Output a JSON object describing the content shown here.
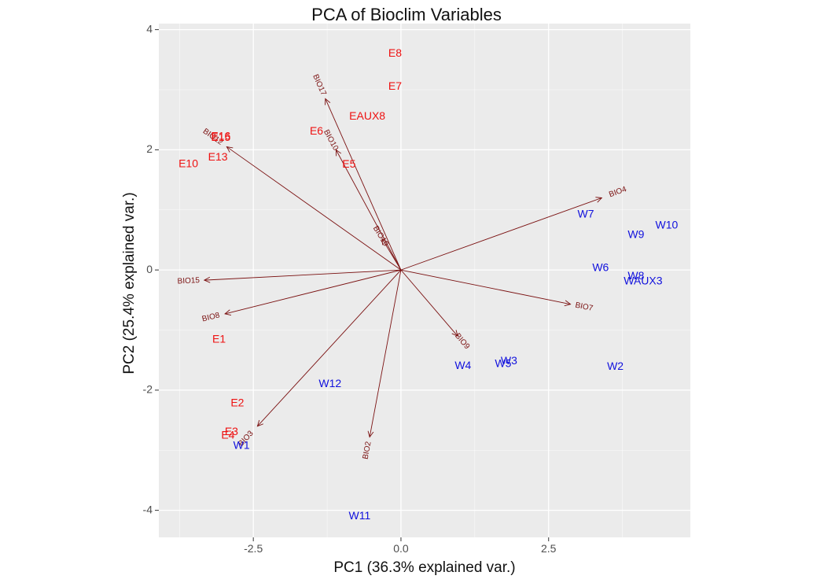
{
  "chart_data": {
    "type": "scatter",
    "title": "PCA of Bioclim Variables",
    "xlabel": "PC1 (36.3% explained var.)",
    "ylabel": "PC2 (25.4% explained var.)",
    "xlim": [
      -4.1,
      4.9
    ],
    "ylim": [
      -4.45,
      4.1
    ],
    "x_ticks": [
      -2.5,
      0,
      2.5
    ],
    "x_tick_labels": [
      "-2.5",
      "0.0",
      "2.5"
    ],
    "y_ticks": [
      -4,
      -2,
      0,
      2,
      4
    ],
    "y_tick_labels": [
      "-4",
      "-2",
      "0",
      "2",
      "4"
    ],
    "grid": true,
    "colors": {
      "panel": "#ebebeb",
      "grid": "#ffffff",
      "group_E": "#ee1111",
      "group_W": "#1111dd",
      "arrow": "#7a1010"
    },
    "points": [
      {
        "label": "E8",
        "x": -0.1,
        "y": 3.6,
        "group": "E"
      },
      {
        "label": "E7",
        "x": -0.1,
        "y": 3.05,
        "group": "E"
      },
      {
        "label": "EAUX8",
        "x": -0.57,
        "y": 2.55,
        "group": "E"
      },
      {
        "label": "E6",
        "x": -1.43,
        "y": 2.3,
        "group": "E"
      },
      {
        "label": "E15",
        "x": -3.05,
        "y": 2.2,
        "group": "E"
      },
      {
        "label": "E16",
        "x": -3.05,
        "y": 2.22,
        "group": "E"
      },
      {
        "label": "E13",
        "x": -3.1,
        "y": 1.87,
        "group": "E"
      },
      {
        "label": "E10",
        "x": -3.6,
        "y": 1.76,
        "group": "E"
      },
      {
        "label": "E5",
        "x": -0.88,
        "y": 1.75,
        "group": "E"
      },
      {
        "label": "E1",
        "x": -3.08,
        "y": -1.16,
        "group": "E"
      },
      {
        "label": "E2",
        "x": -2.77,
        "y": -2.22,
        "group": "E"
      },
      {
        "label": "E3",
        "x": -2.87,
        "y": -2.7,
        "group": "E"
      },
      {
        "label": "E4",
        "x": -2.93,
        "y": -2.76,
        "group": "E"
      },
      {
        "label": "W7",
        "x": 3.13,
        "y": 0.92,
        "group": "W"
      },
      {
        "label": "W10",
        "x": 4.5,
        "y": 0.74,
        "group": "W"
      },
      {
        "label": "W9",
        "x": 3.98,
        "y": 0.58,
        "group": "W"
      },
      {
        "label": "W6",
        "x": 3.38,
        "y": 0.03,
        "group": "W"
      },
      {
        "label": "W8",
        "x": 3.98,
        "y": -0.11,
        "group": "W"
      },
      {
        "label": "WAUX3",
        "x": 4.1,
        "y": -0.19,
        "group": "W"
      },
      {
        "label": "W2",
        "x": 3.63,
        "y": -1.61,
        "group": "W"
      },
      {
        "label": "W3",
        "x": 1.83,
        "y": -1.52,
        "group": "W"
      },
      {
        "label": "W4",
        "x": 1.05,
        "y": -1.6,
        "group": "W"
      },
      {
        "label": "W5",
        "x": 1.73,
        "y": -1.57,
        "group": "W"
      },
      {
        "label": "W12",
        "x": -1.2,
        "y": -1.9,
        "group": "W"
      },
      {
        "label": "W1",
        "x": -2.7,
        "y": -2.93,
        "group": "W"
      },
      {
        "label": "W11",
        "x": -0.7,
        "y": -4.1,
        "group": "W"
      }
    ],
    "loadings": [
      {
        "label": "BIO4",
        "x": 3.4,
        "y": 1.2
      },
      {
        "label": "BIO7",
        "x": 2.87,
        "y": -0.57
      },
      {
        "label": "BIO9",
        "x": 0.96,
        "y": -1.1
      },
      {
        "label": "BIO2",
        "x": -0.53,
        "y": -2.78
      },
      {
        "label": "BIO3",
        "x": -2.43,
        "y": -2.6
      },
      {
        "label": "BIO8",
        "x": -2.98,
        "y": -0.73
      },
      {
        "label": "BIO15",
        "x": -3.33,
        "y": -0.17
      },
      {
        "label": "BIO12",
        "x": -2.95,
        "y": 2.05
      },
      {
        "label": "BIO17",
        "x": -1.28,
        "y": 2.85
      },
      {
        "label": "BIO10",
        "x": -1.1,
        "y": 2.0
      },
      {
        "label": "BIO19",
        "x": -0.32,
        "y": 0.52
      }
    ]
  }
}
